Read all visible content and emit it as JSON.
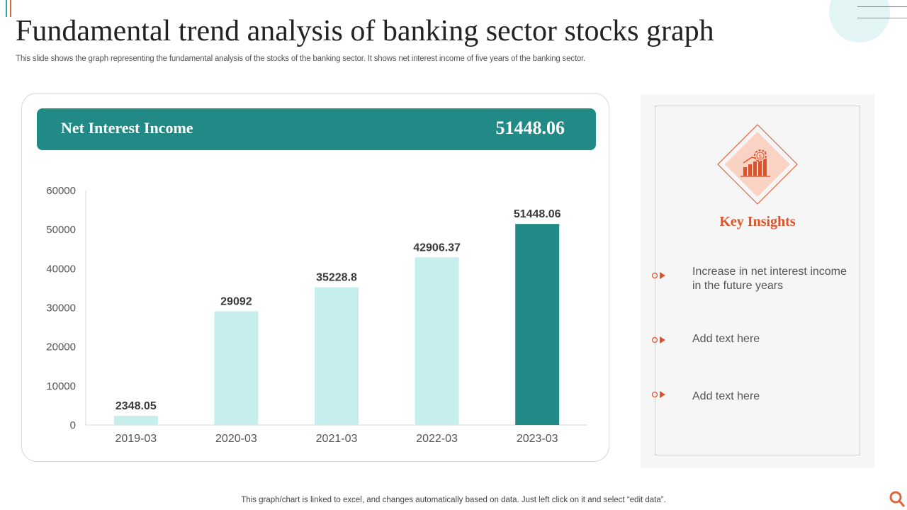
{
  "header": {
    "title": "Fundamental trend analysis of banking sector stocks graph",
    "subtitle": "This slide shows the graph representing the fundamental analysis of the stocks of the banking sector. It shows net interest income of five years of the banking sector."
  },
  "banner": {
    "label": "Net Interest Income",
    "value": "51448.06"
  },
  "chart_data": {
    "type": "bar",
    "categories": [
      "2019-03",
      "2020-03",
      "2021-03",
      "2022-03",
      "2023-03"
    ],
    "values": [
      2348.05,
      29092,
      35228.8,
      42906.37,
      51448.06
    ],
    "value_labels": [
      "2348.05",
      "29092",
      "35228.8",
      "42906.37",
      "51448.06"
    ],
    "ylim": [
      0,
      60000
    ],
    "yticks": [
      0,
      10000,
      20000,
      30000,
      40000,
      50000,
      60000
    ],
    "bar_color": "#c5eeed",
    "highlight_color": "#218a86",
    "highlight_index": 4,
    "grid": false,
    "title": "",
    "xlabel": "",
    "ylabel": ""
  },
  "insights": {
    "title": "Key Insights",
    "items": [
      "Increase  in net interest income in the future  years",
      "Add text here",
      "Add text here"
    ]
  },
  "colors": {
    "accent": "#e0522a",
    "teal": "#218a86"
  },
  "footer": {
    "note": "This graph/chart is linked to excel,  and changes automatically based on data. Just left click on it and select “edit data”."
  }
}
